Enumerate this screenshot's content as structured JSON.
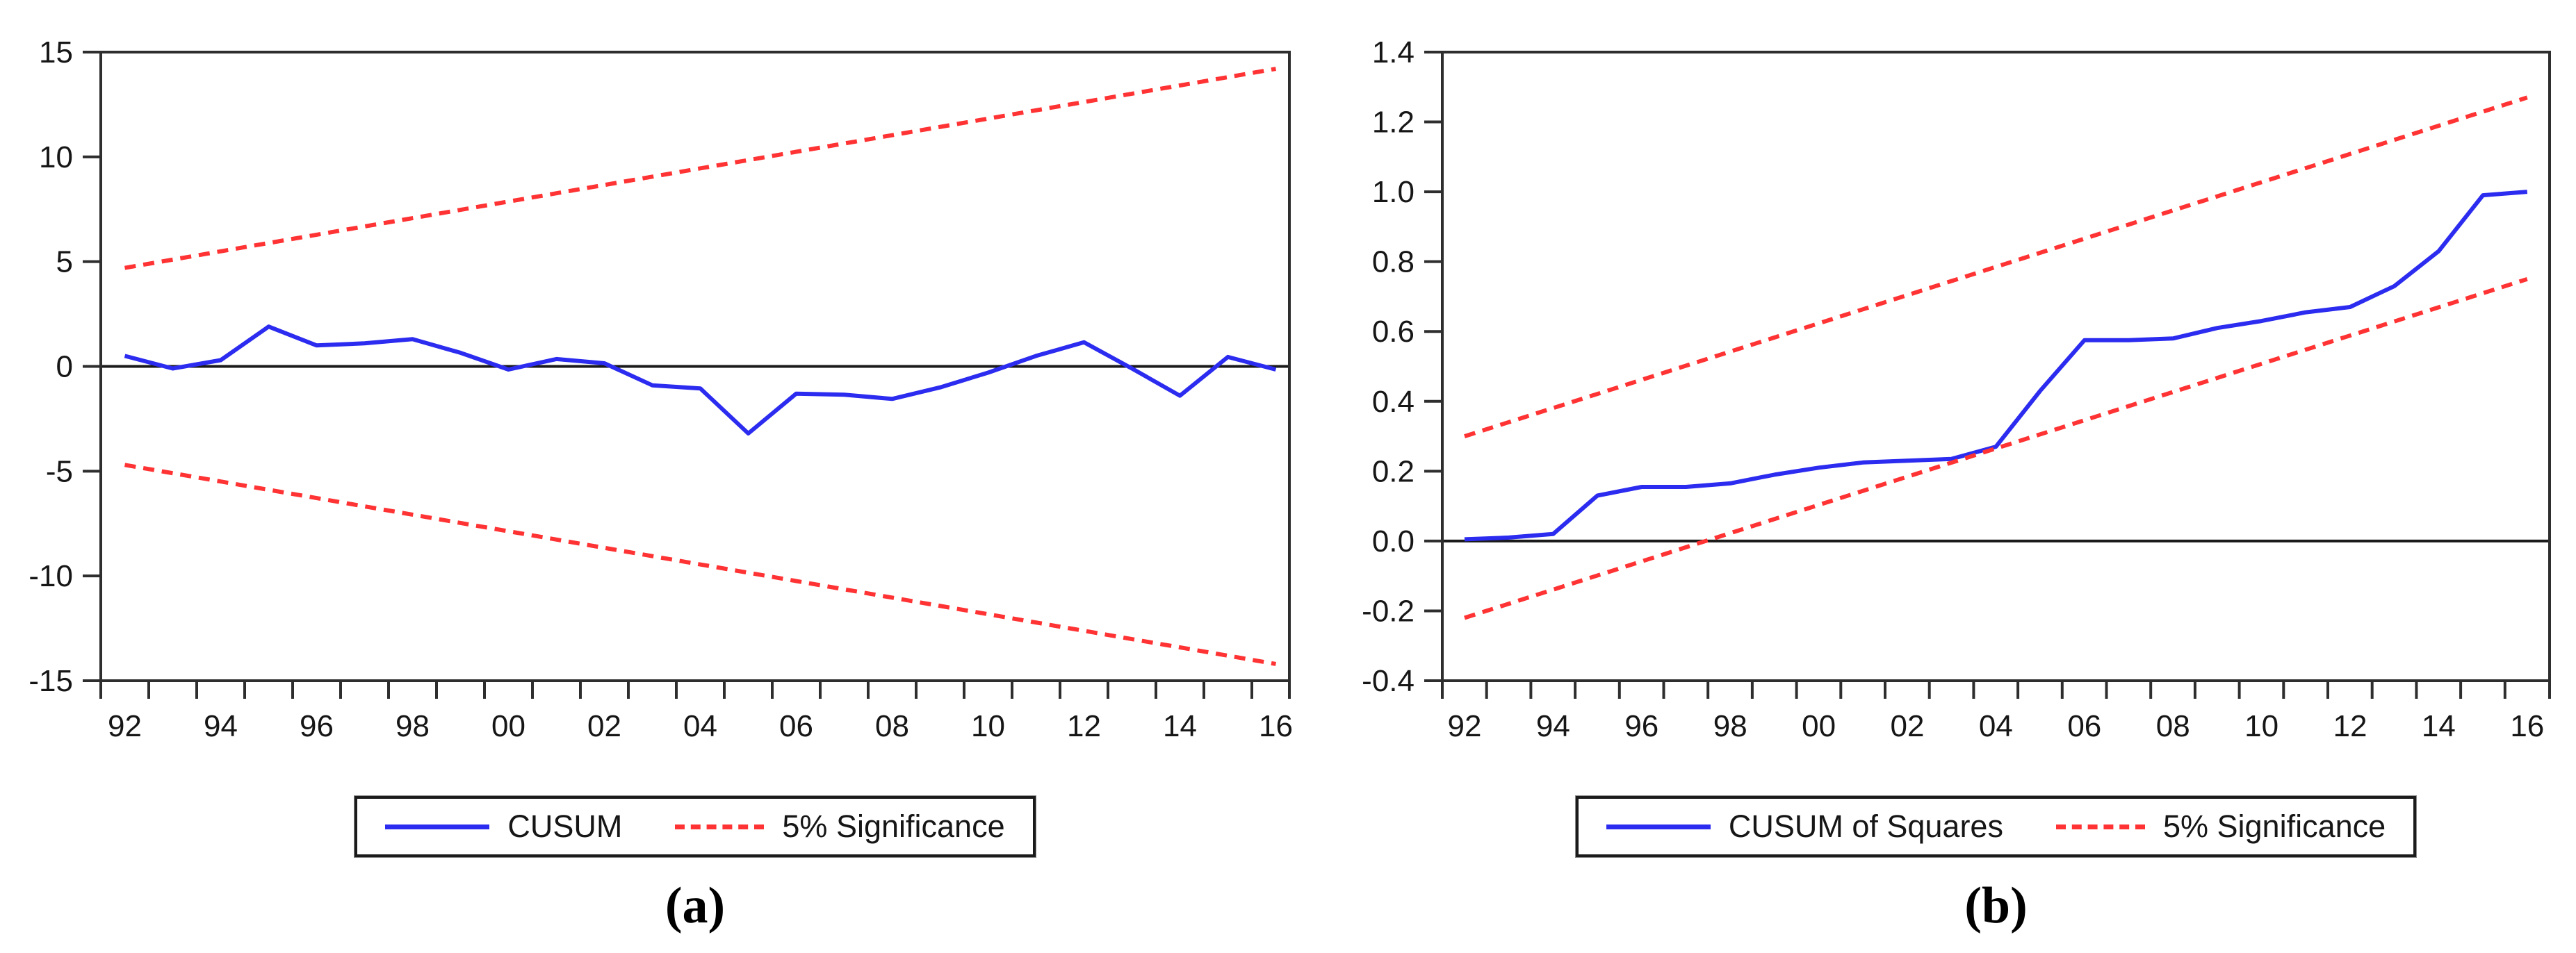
{
  "figure_background": "#ffffff",
  "colors": {
    "cusum_line": "#2c2cf0",
    "significance_line": "#ff3333",
    "axis": "#2e2e2e",
    "zero_line": "#1a1a1a",
    "tick_text": "#161616"
  },
  "panels": [
    {
      "caption": "(a)",
      "legend": [
        "CUSUM",
        "5% Significance"
      ]
    },
    {
      "caption": "(b)",
      "legend": [
        "CUSUM of Squares",
        "5% Significance"
      ]
    }
  ],
  "chart_data": [
    {
      "type": "line",
      "title": "",
      "caption": "(a)",
      "x_years": [
        1992,
        1993,
        1994,
        1995,
        1996,
        1997,
        1998,
        1999,
        2000,
        2001,
        2002,
        2003,
        2004,
        2005,
        2006,
        2007,
        2008,
        2009,
        2010,
        2011,
        2012,
        2013,
        2014,
        2015,
        2016
      ],
      "xtick_labels": [
        "92",
        "94",
        "96",
        "98",
        "00",
        "02",
        "04",
        "06",
        "08",
        "10",
        "12",
        "14",
        "16"
      ],
      "ytick_labels": [
        "15",
        "10",
        "5",
        "0",
        "-5",
        "-10",
        "-15"
      ],
      "ylim": [
        -15,
        15
      ],
      "grid": false,
      "zero_line": true,
      "legend_position": "bottom",
      "series": [
        {
          "name": "CUSUM",
          "style": "solid",
          "color": "#2c2cf0",
          "values": [
            0.5,
            -0.1,
            0.3,
            1.9,
            1.0,
            1.1,
            1.3,
            0.65,
            -0.15,
            0.35,
            0.15,
            -0.9,
            -1.05,
            -3.2,
            -1.3,
            -1.35,
            -1.55,
            -1.0,
            -0.3,
            0.5,
            1.15,
            -0.1,
            -1.4,
            0.45,
            -0.15
          ]
        },
        {
          "name": "5% Significance (upper band)",
          "style": "dashed",
          "color": "#ff3333",
          "x_index": [
            0,
            24
          ],
          "values": [
            4.7,
            14.2
          ]
        },
        {
          "name": "5% Significance (lower band)",
          "style": "dashed",
          "color": "#ff3333",
          "x_index": [
            0,
            24
          ],
          "values": [
            -4.7,
            -14.2
          ]
        }
      ]
    },
    {
      "type": "line",
      "title": "",
      "caption": "(b)",
      "x_years": [
        1992,
        1993,
        1994,
        1995,
        1996,
        1997,
        1998,
        1999,
        2000,
        2001,
        2002,
        2003,
        2004,
        2005,
        2006,
        2007,
        2008,
        2009,
        2010,
        2011,
        2012,
        2013,
        2014,
        2015,
        2016
      ],
      "xtick_labels": [
        "92",
        "94",
        "96",
        "98",
        "00",
        "02",
        "04",
        "06",
        "08",
        "10",
        "12",
        "14",
        "16"
      ],
      "ytick_labels": [
        "1.4",
        "1.2",
        "1.0",
        "0.8",
        "0.6",
        "0.4",
        "0.2",
        "0.0",
        "-0.2",
        "-0.4"
      ],
      "ylim": [
        -0.4,
        1.4
      ],
      "grid": false,
      "zero_line": true,
      "legend_position": "bottom",
      "series": [
        {
          "name": "CUSUM of Squares",
          "style": "solid",
          "color": "#2c2cf0",
          "values": [
            0.005,
            0.01,
            0.02,
            0.13,
            0.155,
            0.155,
            0.165,
            0.19,
            0.21,
            0.225,
            0.23,
            0.235,
            0.27,
            0.43,
            0.575,
            0.575,
            0.58,
            0.61,
            0.63,
            0.655,
            0.67,
            0.73,
            0.83,
            0.99,
            1.0
          ]
        },
        {
          "name": "5% Significance (upper band)",
          "style": "dashed",
          "color": "#ff3333",
          "x_index": [
            0,
            24
          ],
          "values": [
            0.3,
            1.27
          ]
        },
        {
          "name": "5% Significance (lower band)",
          "style": "dashed",
          "color": "#ff3333",
          "x_index": [
            0,
            24
          ],
          "values": [
            -0.22,
            0.75
          ]
        }
      ]
    }
  ]
}
